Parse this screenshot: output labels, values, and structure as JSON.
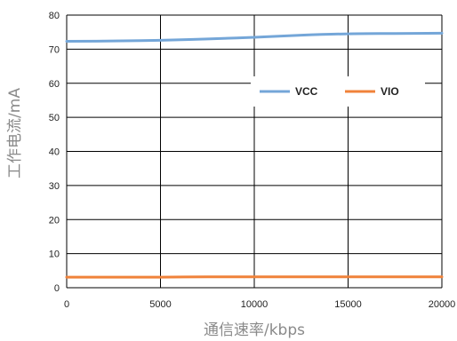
{
  "chart_data": {
    "type": "line",
    "xlabel": "通信速率/kbps",
    "ylabel": "工作电流/mA",
    "xlim": [
      0,
      20000
    ],
    "ylim": [
      0,
      80
    ],
    "x_ticks": [
      0,
      5000,
      10000,
      15000,
      20000
    ],
    "y_ticks": [
      0,
      10,
      20,
      30,
      40,
      50,
      60,
      70,
      80
    ],
    "grid": true,
    "legend_position": "upper-right, inside plot",
    "x": [
      0,
      2500,
      5000,
      7500,
      10000,
      12500,
      15000,
      17500,
      20000
    ],
    "series": [
      {
        "name": "VCC",
        "color": "#74a6d8",
        "values": [
          72.3,
          72.4,
          72.6,
          73.0,
          73.5,
          74.1,
          74.5,
          74.6,
          74.7
        ]
      },
      {
        "name": "VIO",
        "color": "#f0823a",
        "values": [
          3.1,
          3.1,
          3.1,
          3.2,
          3.2,
          3.2,
          3.2,
          3.2,
          3.2
        ]
      }
    ]
  }
}
